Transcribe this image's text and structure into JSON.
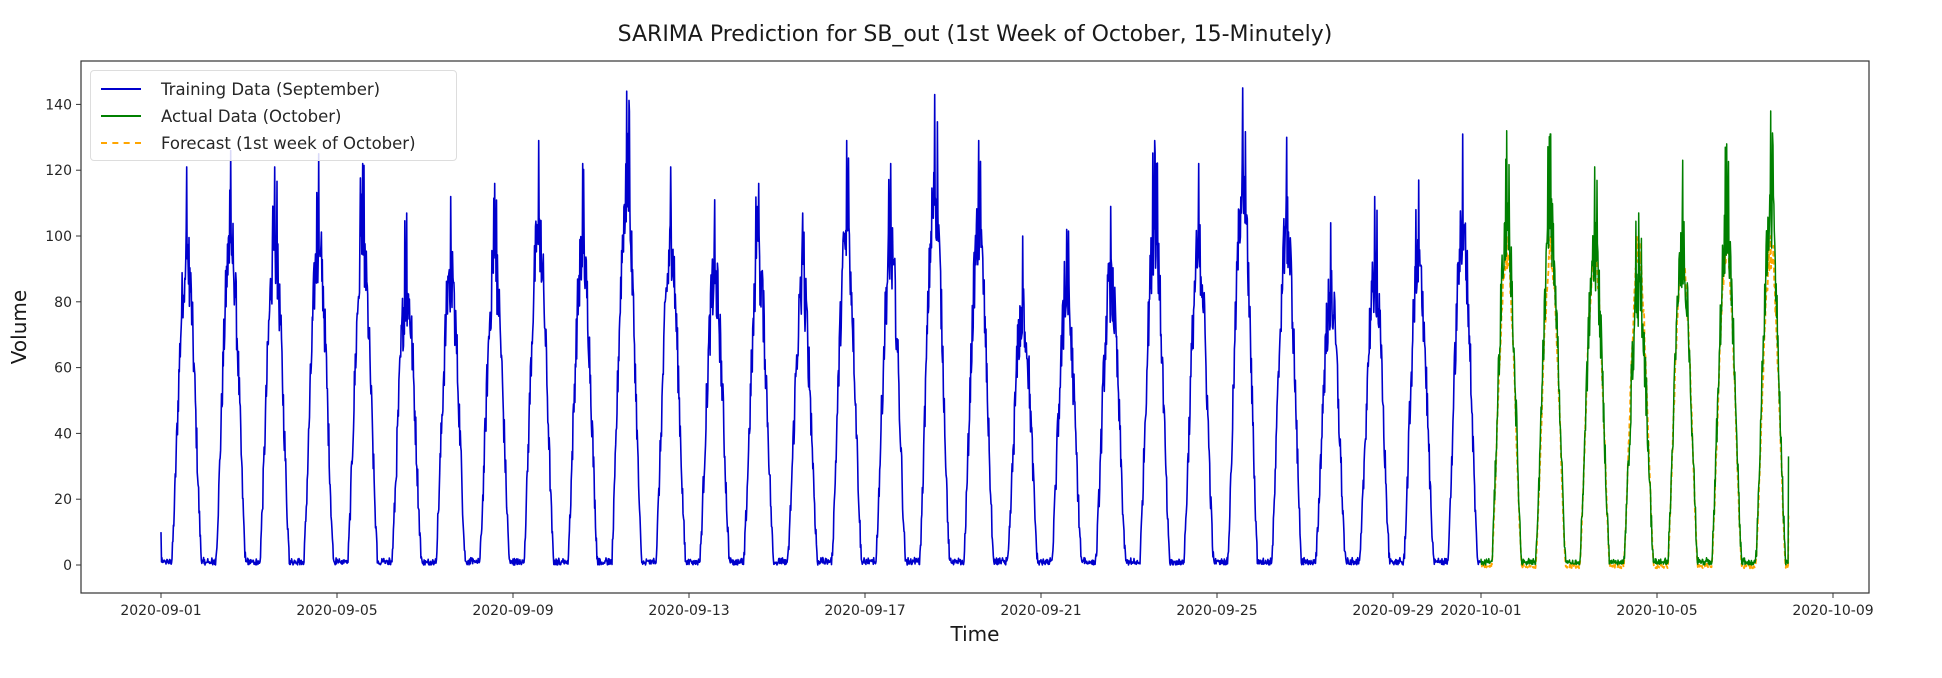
{
  "chart_data": {
    "type": "line",
    "title": "SARIMA Prediction for SB_out (1st Week of October, 15-Minutely)",
    "xlabel": "Time",
    "ylabel": "Volume",
    "ylim": [
      -8.5,
      152
    ],
    "xlim": [
      "2020-08-30T04:00",
      "2020-10-09T19:00"
    ],
    "yticks": [
      0,
      20,
      40,
      60,
      80,
      100,
      120,
      140
    ],
    "xticks": [
      "2020-09-01",
      "2020-09-05",
      "2020-09-09",
      "2020-09-13",
      "2020-09-17",
      "2020-09-21",
      "2020-09-25",
      "2020-09-29",
      "2020-10-01",
      "2020-10-05",
      "2020-10-09"
    ],
    "grid": false,
    "legend_position": "upper left",
    "frequency": "15-minutely",
    "series": [
      {
        "name": "Training Data (September)",
        "color": "#0000cc",
        "style": "solid",
        "start": "2020-09-01",
        "end": "2020-09-30T23:45",
        "daily_min_approx": 0,
        "daily_peak_values": [
          121,
          126,
          121,
          125,
          122,
          107,
          112,
          116,
          129,
          122,
          144,
          121,
          111,
          116,
          107,
          129,
          122,
          143,
          129,
          100,
          102,
          109,
          129,
          122,
          145,
          130,
          104,
          112,
          117,
          131
        ]
      },
      {
        "name": "Actual Data (October)",
        "color": "#008000",
        "style": "solid",
        "start": "2020-10-01",
        "end": "2020-10-07T23:45",
        "daily_min_approx": 0,
        "daily_peak_values": [
          132,
          131,
          121,
          107,
          123,
          128,
          138
        ],
        "end_value": 33
      },
      {
        "name": "Forecast (1st week of October)",
        "color": "#ffa500",
        "style": "dashed",
        "start": "2020-10-01",
        "end": "2020-10-07T23:45",
        "daily_min_approx": -1,
        "daily_peak_values": [
          100,
          100,
          100,
          100,
          100,
          100,
          100
        ],
        "daily_plateau_approx": 94,
        "end_value": 15
      }
    ]
  },
  "legend": {
    "items": [
      {
        "label": "Training Data (September)",
        "color": "#0000cc",
        "style": "solid"
      },
      {
        "label": "Actual Data (October)",
        "color": "#008000",
        "style": "solid"
      },
      {
        "label": "Forecast (1st week of October)",
        "color": "#ffa500",
        "style": "dashed"
      }
    ]
  }
}
